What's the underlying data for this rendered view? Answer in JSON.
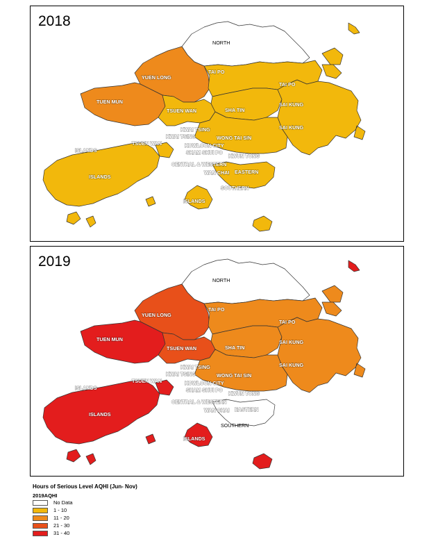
{
  "panels": [
    {
      "year": "2018",
      "fills": {
        "north": "#ffffff",
        "tai_po": "#f2b80c",
        "yuen_long": "#ee8a1c",
        "tuen_mun": "#ee8a1c",
        "tsuen_wan": "#f2b80c",
        "sha_tin": "#f2b80c",
        "sai_kung": "#f2b80c",
        "islands": "#f2b80c",
        "urban": "#f2b80c",
        "southern": "#f2b80c",
        "lamma": "#f2b80c",
        "far_islands": "#f2b80c"
      }
    },
    {
      "year": "2019",
      "fills": {
        "north": "#ffffff",
        "tai_po": "#ee8a1c",
        "yuen_long": "#e8501a",
        "tuen_mun": "#e31d1d",
        "tsuen_wan": "#e8501a",
        "sha_tin": "#ee8a1c",
        "sai_kung": "#ee8a1c",
        "islands": "#e31d1d",
        "urban": "#ee8a1c",
        "southern": "#ffffff",
        "lamma": "#e31d1d",
        "far_islands": "#e31d1d"
      }
    }
  ],
  "district_labels": {
    "north": "NORTH",
    "yuen_long": "YUEN LONG",
    "tai_po_1": "TAI PO",
    "tai_po_2": "TAI PO",
    "tuen_mun": "TUEN MUN",
    "tsuen_wan_1": "TSUEN WAN",
    "tsuen_wan_2": "TSUEN WAN",
    "sha_tin": "SHA TIN",
    "sai_kung_1": "SAI KUNG",
    "sai_kung_2": "SAI KUNG",
    "kwai_tsing_1": "KWAI TSING",
    "kwai_tsing_2": "KWAI TSING",
    "wong_tai_sin": "WONG TAI SIN",
    "kowloon_city": "KOWLOON CITY",
    "kwun_tong": "KWUN TONG",
    "sham_shui_po": "SHAM SHUI PO",
    "islands_1": "ISLANDS",
    "islands_2": "ISLANDS",
    "islands_3": "ISLANDS",
    "central_western": "CENTRAL & WESTERN",
    "wan_chai": "WAN CHAI",
    "eastern": "EASTERN",
    "southern": "SOUTHERN"
  },
  "legend": {
    "title": "Hours of Serious Level AQHI (Jun- Nov)",
    "field": "2019AQHI",
    "items": [
      {
        "label": "No Data",
        "color": "#ffffff"
      },
      {
        "label": "1 - 10",
        "color": "#f2b80c"
      },
      {
        "label": "11 - 20",
        "color": "#ee8a1c"
      },
      {
        "label": "21 - 30",
        "color": "#e8501a"
      },
      {
        "label": "31 - 40",
        "color": "#e31d1d"
      }
    ]
  }
}
